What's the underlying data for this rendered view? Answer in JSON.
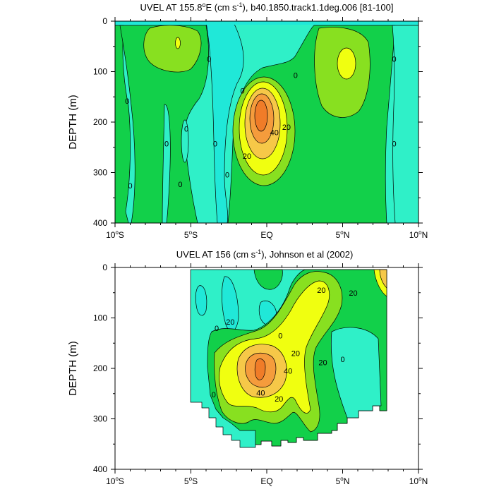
{
  "colors": {
    "neg": "#20e8d8",
    "c0": "#2ff0c8",
    "c10": "#12d04a",
    "c20": "#88e020",
    "c30": "#f0ff10",
    "c40": "#f6c848",
    "c50": "#f59c3c",
    "c60": "#f07c28",
    "line": "#000000"
  },
  "chart_data": [
    {
      "type": "contour",
      "title": "UVEL AT 155.8°E (cm s⁻¹), b40.1850.track1.1deg.006 [81-100]",
      "title_parts": [
        "UVEL AT 155.8",
        "o",
        "E (cm s",
        "-1",
        "), b40.1850.track1.1deg.006 [81-100]"
      ],
      "ylabel": "DEPTH (m)",
      "xlim": [
        -10,
        10
      ],
      "ylim": [
        0,
        400
      ],
      "y_inverted": true,
      "xticks": [
        {
          "v": -10,
          "base": "10",
          "sup": "o",
          "tail": "S"
        },
        {
          "v": -5,
          "base": "5",
          "sup": "o",
          "tail": "S"
        },
        {
          "v": 0,
          "base": "EQ",
          "sup": "",
          "tail": ""
        },
        {
          "v": 5,
          "base": "5",
          "sup": "o",
          "tail": "N"
        },
        {
          "v": 10,
          "base": "10",
          "sup": "o",
          "tail": "N"
        }
      ],
      "yticks": [
        "0",
        "100",
        "200",
        "300",
        "400"
      ],
      "contour_labels": [
        {
          "x": -9.2,
          "y": 158,
          "t": "0"
        },
        {
          "x": -9.0,
          "y": 326,
          "t": "0"
        },
        {
          "x": -6.6,
          "y": 243,
          "t": "0"
        },
        {
          "x": -5.7,
          "y": 323,
          "t": "0"
        },
        {
          "x": -5.3,
          "y": 213,
          "t": "0"
        },
        {
          "x": -3.8,
          "y": 75,
          "t": "0"
        },
        {
          "x": -3.4,
          "y": 243,
          "t": "0"
        },
        {
          "x": -2.6,
          "y": 304,
          "t": "0"
        },
        {
          "x": -1.6,
          "y": 138,
          "t": "0"
        },
        {
          "x": 0.5,
          "y": 220,
          "t": "40"
        },
        {
          "x": 1.3,
          "y": 210,
          "t": "20"
        },
        {
          "x": -1.3,
          "y": 267,
          "t": "20"
        },
        {
          "x": 1.9,
          "y": 107,
          "t": "0"
        },
        {
          "x": 8.4,
          "y": 75,
          "t": "0"
        },
        {
          "x": 8.4,
          "y": 243,
          "t": "0"
        }
      ]
    },
    {
      "type": "contour",
      "title": "UVEL AT 156 (cm s⁻¹), Johnson et al (2002)",
      "title_parts": [
        "UVEL AT 156 (cm s",
        "-1",
        "), Johnson et al (2002)"
      ],
      "ylabel": "DEPTH (m)",
      "xlim": [
        -10,
        10
      ],
      "ylim": [
        0,
        400
      ],
      "y_inverted": true,
      "xticks": [
        {
          "v": -10,
          "base": "10",
          "sup": "o",
          "tail": "S"
        },
        {
          "v": -5,
          "base": "5",
          "sup": "o",
          "tail": "S"
        },
        {
          "v": 0,
          "base": "EQ",
          "sup": "",
          "tail": ""
        },
        {
          "v": 5,
          "base": "5",
          "sup": "o",
          "tail": "N"
        },
        {
          "v": 10,
          "base": "10",
          "sup": "o",
          "tail": "N"
        }
      ],
      "yticks": [
        "0",
        "100",
        "200",
        "300",
        "400"
      ],
      "contour_labels": [
        {
          "x": -2.4,
          "y": 108,
          "t": "20"
        },
        {
          "x": -3.3,
          "y": 120,
          "t": "0"
        },
        {
          "x": -3.5,
          "y": 252,
          "t": "0"
        },
        {
          "x": -0.4,
          "y": 248,
          "t": "40"
        },
        {
          "x": 1.4,
          "y": 205,
          "t": "40"
        },
        {
          "x": 0.8,
          "y": 260,
          "t": "20"
        },
        {
          "x": 1.9,
          "y": 170,
          "t": "20"
        },
        {
          "x": 0.9,
          "y": 135,
          "t": "0"
        },
        {
          "x": 3.6,
          "y": 45,
          "t": "20"
        },
        {
          "x": 5.7,
          "y": 50,
          "t": "20"
        },
        {
          "x": 3.7,
          "y": 188,
          "t": "20"
        },
        {
          "x": 5.0,
          "y": 182,
          "t": "0"
        }
      ]
    }
  ]
}
